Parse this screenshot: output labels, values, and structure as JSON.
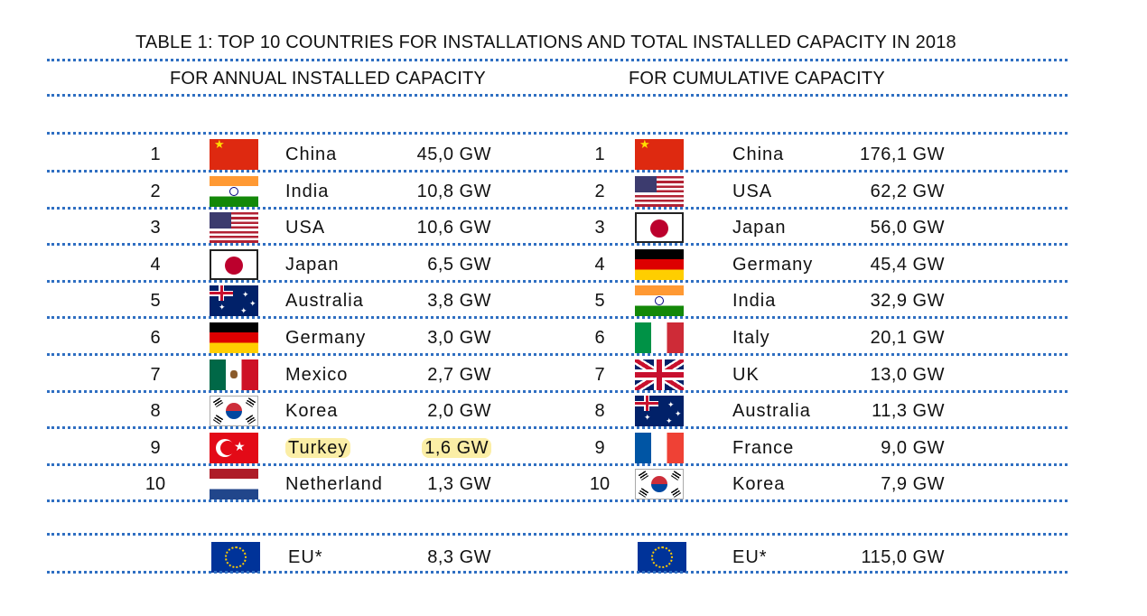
{
  "title": "TABLE 1: TOP 10 COUNTRIES FOR INSTALLATIONS AND TOTAL INSTALLED CAPACITY IN 2018",
  "left_header": "FOR ANNUAL INSTALLED CAPACITY",
  "right_header": "FOR CUMULATIVE CAPACITY",
  "annual": [
    {
      "rank": "1",
      "country": "China",
      "value": "45,0 GW",
      "flag": "china-flag-icon"
    },
    {
      "rank": "2",
      "country": "India",
      "value": "10,8 GW",
      "flag": "india-flag-icon"
    },
    {
      "rank": "3",
      "country": "USA",
      "value": "10,6 GW",
      "flag": "usa-flag-icon"
    },
    {
      "rank": "4",
      "country": "Japan",
      "value": "6,5 GW",
      "flag": "japan-flag-icon"
    },
    {
      "rank": "5",
      "country": "Australia",
      "value": "3,8 GW",
      "flag": "australia-flag-icon"
    },
    {
      "rank": "6",
      "country": "Germany",
      "value": "3,0 GW",
      "flag": "germany-flag-icon"
    },
    {
      "rank": "7",
      "country": "Mexico",
      "value": "2,7 GW",
      "flag": "mexico-flag-icon"
    },
    {
      "rank": "8",
      "country": "Korea",
      "value": "2,0 GW",
      "flag": "korea-flag-icon"
    },
    {
      "rank": "9",
      "country": "Turkey",
      "value": "1,6 GW",
      "flag": "turkey-flag-icon"
    },
    {
      "rank": "10",
      "country": "Netherland",
      "value": "1,3 GW",
      "flag": "netherlands-flag-icon"
    }
  ],
  "cumulative": [
    {
      "rank": "1",
      "country": "China",
      "value": "176,1 GW",
      "flag": "china-flag-icon"
    },
    {
      "rank": "2",
      "country": "USA",
      "value": "62,2 GW",
      "flag": "usa-flag-icon"
    },
    {
      "rank": "3",
      "country": "Japan",
      "value": "56,0 GW",
      "flag": "japan-flag-icon"
    },
    {
      "rank": "4",
      "country": "Germany",
      "value": "45,4 GW",
      "flag": "germany-flag-icon"
    },
    {
      "rank": "5",
      "country": "India",
      "value": "32,9 GW",
      "flag": "india-flag-icon"
    },
    {
      "rank": "6",
      "country": "Italy",
      "value": "20,1 GW",
      "flag": "italy-flag-icon"
    },
    {
      "rank": "7",
      "country": "UK",
      "value": "13,0 GW",
      "flag": "uk-flag-icon"
    },
    {
      "rank": "8",
      "country": "Australia",
      "value": "11,3 GW",
      "flag": "australia-flag-icon"
    },
    {
      "rank": "9",
      "country": "France",
      "value": "9,0 GW",
      "flag": "france-flag-icon"
    },
    {
      "rank": "10",
      "country": "Korea",
      "value": "7,9 GW",
      "flag": "korea-flag-icon"
    }
  ],
  "eu_annual": {
    "country": "EU*",
    "value": "8,3 GW",
    "flag": "eu-flag-icon"
  },
  "eu_cumulative": {
    "country": "EU*",
    "value": "115,0 GW",
    "flag": "eu-flag-icon"
  },
  "highlight_color": "#fbeea6",
  "rule_color": "#2f6fc2"
}
